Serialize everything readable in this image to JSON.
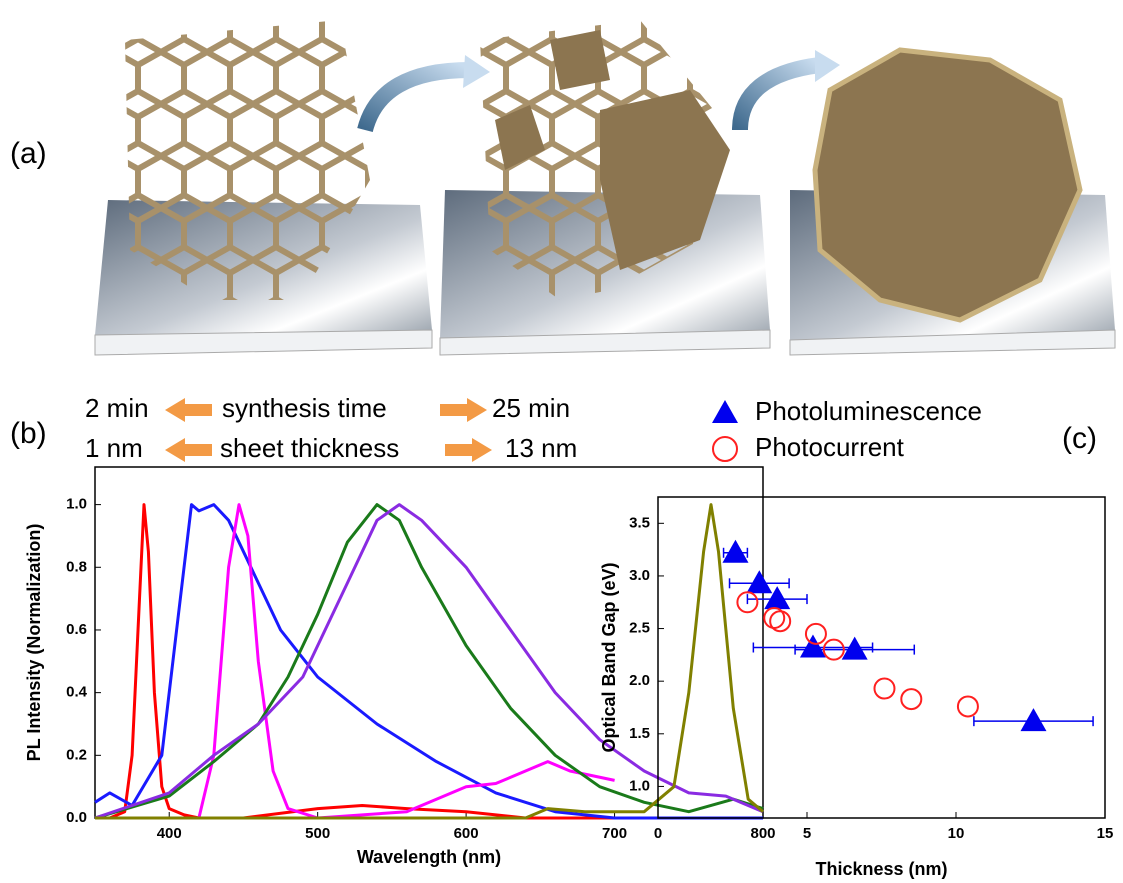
{
  "figure": {
    "panel_labels": [
      "(a)",
      "(b)",
      "(c)"
    ],
    "annotations": [
      [
        "2 min",
        "synthesis time",
        "25 min"
      ],
      [
        "1 nm",
        "sheet thickness",
        "13 nm"
      ]
    ]
  },
  "chart_data": [
    {
      "type": "line",
      "xlabel": "Wavelength (nm)",
      "ylabel": "PL Intensity (Normalization)",
      "xlim": [
        350,
        800
      ],
      "xticks": [
        400,
        500,
        600,
        700,
        800
      ],
      "ylim": [
        0,
        1.12
      ],
      "yticks": [
        {
          "value": 0,
          "label": "0.0"
        },
        0.2,
        0.4,
        0.6,
        0.8,
        {
          "value": 1,
          "label": "1.0"
        }
      ],
      "series": [
        {
          "color": "#ff0000",
          "x": [
            350,
            360,
            370,
            375,
            380,
            383,
            386,
            390,
            395,
            400,
            410,
            420,
            450,
            500,
            530,
            560,
            600,
            640,
            700,
            800
          ],
          "values": [
            0,
            0,
            0.02,
            0.2,
            0.7,
            1.0,
            0.85,
            0.4,
            0.1,
            0.03,
            0.01,
            0,
            0,
            0.03,
            0.04,
            0.03,
            0.02,
            0,
            0,
            0
          ]
        },
        {
          "color": "#1a1aff",
          "x": [
            350,
            360,
            375,
            395,
            405,
            415,
            420,
            430,
            440,
            455,
            475,
            500,
            540,
            580,
            620,
            660,
            700,
            800
          ],
          "values": [
            0.05,
            0.08,
            0.04,
            0.2,
            0.6,
            1.0,
            0.98,
            1.0,
            0.95,
            0.8,
            0.6,
            0.45,
            0.3,
            0.18,
            0.08,
            0.02,
            0,
            0
          ]
        },
        {
          "color": "#ff00ff",
          "x": [
            350,
            420,
            430,
            440,
            447,
            453,
            460,
            470,
            480,
            500,
            560,
            600,
            620,
            640,
            655,
            670,
            700
          ],
          "values": [
            0,
            0,
            0.2,
            0.8,
            1.0,
            0.9,
            0.5,
            0.15,
            0.03,
            0,
            0.02,
            0.1,
            0.11,
            0.15,
            0.18,
            0.15,
            0.12
          ]
        },
        {
          "color": "#1a7a1a",
          "x": [
            350,
            400,
            430,
            460,
            480,
            500,
            520,
            540,
            555,
            570,
            600,
            630,
            660,
            690,
            720,
            750,
            780,
            800
          ],
          "values": [
            0,
            0.07,
            0.18,
            0.3,
            0.45,
            0.65,
            0.88,
            1.0,
            0.95,
            0.8,
            0.55,
            0.35,
            0.2,
            0.1,
            0.05,
            0.02,
            0.06,
            0.03
          ]
        },
        {
          "color": "#8a2be2",
          "x": [
            350,
            400,
            430,
            460,
            490,
            520,
            540,
            555,
            570,
            600,
            630,
            660,
            690,
            720,
            750,
            775,
            800
          ],
          "values": [
            0,
            0.08,
            0.2,
            0.3,
            0.45,
            0.75,
            0.95,
            1.0,
            0.95,
            0.8,
            0.6,
            0.4,
            0.25,
            0.15,
            0.08,
            0.07,
            0.02
          ]
        },
        {
          "color": "#808000",
          "x": [
            350,
            640,
            655,
            680,
            720,
            740,
            750,
            760,
            765,
            770,
            780,
            790,
            800
          ],
          "values": [
            0,
            0,
            0.03,
            0.02,
            0.02,
            0.1,
            0.4,
            0.85,
            1.0,
            0.85,
            0.35,
            0.06,
            0.02
          ]
        }
      ]
    },
    {
      "type": "scatter",
      "xlabel": "Thickness (nm)",
      "ylabel": "Optical Band Gap (eV)",
      "xlim": [
        0,
        15
      ],
      "xticks": [
        0,
        5,
        10,
        15
      ],
      "ylim": [
        0.7,
        3.75
      ],
      "yticks": [
        {
          "value": 1,
          "label": "1.0"
        },
        1.5,
        {
          "value": 2,
          "label": "2.0"
        },
        2.5,
        {
          "value": 3,
          "label": "3.0"
        },
        3.5
      ],
      "series": [
        {
          "name": "Photoluminescence",
          "color": "#0000ee",
          "marker": "triangle",
          "x": [
            2.6,
            3.4,
            4.0,
            5.2,
            6.6,
            12.6
          ],
          "values": [
            3.22,
            2.93,
            2.78,
            2.32,
            2.3,
            1.62
          ],
          "xerr": [
            0.4,
            1.0,
            1.0,
            2.0,
            2.0,
            2.0
          ]
        },
        {
          "name": "Photocurrent",
          "color": "#ff2020",
          "marker": "circle",
          "x": [
            3.0,
            3.9,
            4.1,
            5.3,
            5.9,
            7.6,
            8.5,
            10.4
          ],
          "values": [
            2.75,
            2.6,
            2.57,
            2.45,
            2.3,
            1.93,
            1.83,
            1.76
          ]
        }
      ]
    }
  ]
}
